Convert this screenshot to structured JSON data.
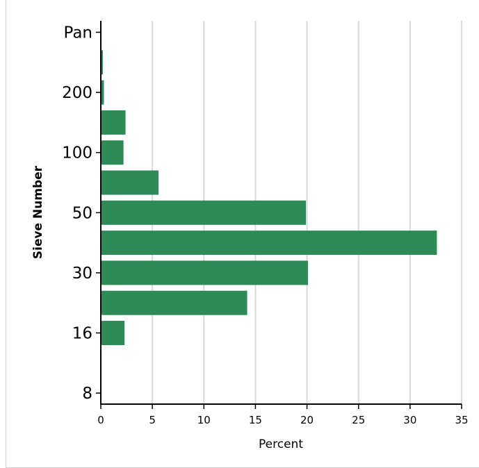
{
  "chart_data": {
    "type": "bar",
    "orientation": "horizontal",
    "xlabel": "Percent",
    "ylabel": "Sieve Number",
    "xlim": [
      0,
      35
    ],
    "x_ticks": [
      "0",
      "5",
      "10",
      "15",
      "20",
      "25",
      "30",
      "35"
    ],
    "y_tick_labels": [
      "Pan",
      "200",
      "100",
      "50",
      "30",
      "16",
      "8"
    ],
    "grid": "vertical",
    "bar_color": "#2e8b57",
    "values": [
      0,
      0.2,
      0.3,
      2.4,
      2.2,
      5.6,
      19.9,
      32.6,
      20.1,
      14.2,
      2.3
    ]
  }
}
